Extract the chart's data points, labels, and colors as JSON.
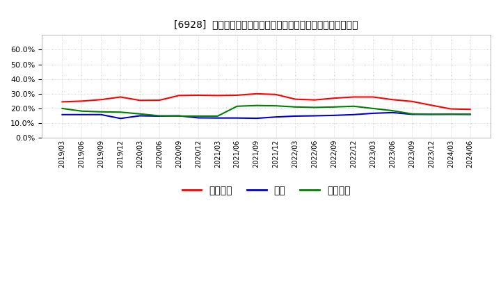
{
  "title": "[6928]  売上債権、在庫、買入債務の総資産に対する比率の推移",
  "x_labels": [
    "2019/03",
    "2019/06",
    "2019/09",
    "2019/12",
    "2020/03",
    "2020/06",
    "2020/09",
    "2020/12",
    "2021/03",
    "2021/06",
    "2021/09",
    "2021/12",
    "2022/03",
    "2022/06",
    "2022/09",
    "2022/12",
    "2023/03",
    "2023/06",
    "2023/09",
    "2023/12",
    "2024/03",
    "2024/06"
  ],
  "series_order": [
    "売上債権",
    "在庫",
    "買入債務"
  ],
  "series": {
    "売上債権": {
      "color": "#ff0000",
      "values": [
        0.245,
        0.25,
        0.26,
        0.278,
        0.255,
        0.256,
        0.288,
        0.29,
        0.288,
        0.29,
        0.3,
        0.295,
        0.263,
        0.258,
        0.27,
        0.278,
        0.278,
        0.26,
        0.248,
        0.222,
        0.197,
        0.194
      ]
    },
    "在庫": {
      "color": "#0000cc",
      "values": [
        0.158,
        0.158,
        0.158,
        0.132,
        0.15,
        0.148,
        0.15,
        0.136,
        0.135,
        0.135,
        0.133,
        0.142,
        0.148,
        0.15,
        0.153,
        0.158,
        0.167,
        0.172,
        0.16,
        0.16,
        0.16,
        0.16
      ]
    },
    "買入債務": {
      "color": "#008000",
      "values": [
        0.2,
        0.182,
        0.177,
        0.175,
        0.163,
        0.15,
        0.148,
        0.148,
        0.148,
        0.215,
        0.22,
        0.218,
        0.21,
        0.207,
        0.21,
        0.215,
        0.2,
        0.185,
        0.163,
        0.16,
        0.162,
        0.16
      ]
    }
  },
  "ylim": [
    0.0,
    0.7
  ],
  "yticks": [
    0.0,
    0.1,
    0.2,
    0.3,
    0.4,
    0.5,
    0.6
  ],
  "background_color": "#ffffff",
  "plot_bg_color": "#ffffff",
  "grid_color": "#999999",
  "title_fontsize": 10.5,
  "tick_fontsize": 8,
  "legend_fontsize": 9
}
